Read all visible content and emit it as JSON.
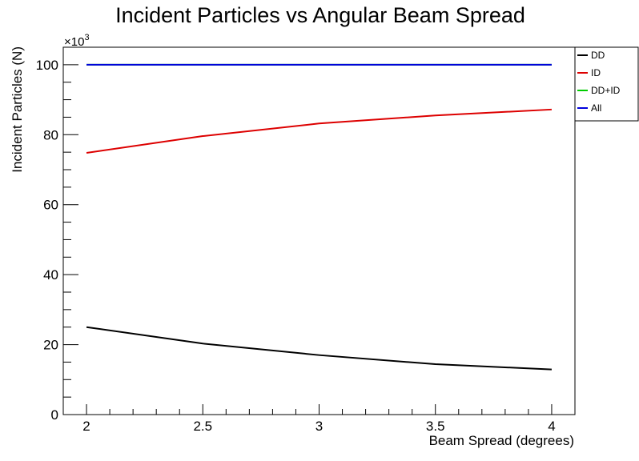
{
  "chart_data": {
    "type": "line",
    "title": "Incident Particles vs Angular Beam Spread",
    "xlabel": "Beam Spread (degrees)",
    "ylabel": "Incident Particles (N)",
    "y_multiplier_base": "×10",
    "y_multiplier_exp": "3",
    "xlim": [
      1.9,
      4.1
    ],
    "ylim": [
      0,
      105
    ],
    "x_ticks": [
      {
        "value": 2,
        "label": "2"
      },
      {
        "value": 2.5,
        "label": "2.5"
      },
      {
        "value": 3,
        "label": "3"
      },
      {
        "value": 3.5,
        "label": "3.5"
      },
      {
        "value": 4,
        "label": "4"
      }
    ],
    "y_ticks": [
      {
        "value": 0,
        "label": "0"
      },
      {
        "value": 20,
        "label": "20"
      },
      {
        "value": 40,
        "label": "40"
      },
      {
        "value": 60,
        "label": "60"
      },
      {
        "value": 80,
        "label": "80"
      },
      {
        "value": 100,
        "label": "100"
      }
    ],
    "legend_position": "top-right",
    "grid": false,
    "series": [
      {
        "name": "DD",
        "color": "#000000",
        "x": [
          2,
          2.5,
          3,
          3.5,
          4
        ],
        "y": [
          25.0,
          20.3,
          17.0,
          14.4,
          12.9
        ]
      },
      {
        "name": "ID",
        "color": "#dd0000",
        "x": [
          2,
          2.5,
          3,
          3.5,
          4
        ],
        "y": [
          74.8,
          79.6,
          83.2,
          85.5,
          87.2
        ]
      },
      {
        "name": "DD+ID",
        "color": "#00cc00",
        "x": [
          2,
          2.5,
          3,
          3.5,
          4
        ],
        "y": [
          100,
          100,
          100,
          100,
          100
        ]
      },
      {
        "name": "All",
        "color": "#0000dd",
        "x": [
          2,
          2.5,
          3,
          3.5,
          4
        ],
        "y": [
          100,
          100,
          100,
          100,
          100
        ]
      }
    ]
  }
}
